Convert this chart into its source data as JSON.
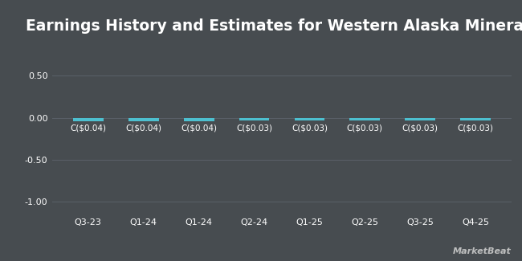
{
  "title": "Earnings History and Estimates for Western Alaska Minerals",
  "categories": [
    "Q3-23",
    "Q1-24",
    "Q1-24",
    "Q2-24",
    "Q1-25",
    "Q2-25",
    "Q3-25",
    "Q4-25"
  ],
  "values": [
    -0.04,
    -0.04,
    -0.04,
    -0.03,
    -0.03,
    -0.03,
    -0.03,
    -0.03
  ],
  "bar_labels": [
    "C($0.04)",
    "C($0.04)",
    "C($0.04)",
    "C($0.03)",
    "C($0.03)",
    "C($0.03)",
    "C($0.03)",
    "C($0.03)"
  ],
  "bar_color": "#4dbfcf",
  "background_color": "#474c50",
  "text_color": "#ffffff",
  "grid_color": "#5a6068",
  "ylim": [
    -1.15,
    0.72
  ],
  "yticks": [
    0.5,
    0.0,
    -0.5,
    -1.0
  ],
  "title_fontsize": 13.5,
  "label_fontsize": 7.5,
  "tick_fontsize": 8,
  "watermark": "MarketBeat"
}
